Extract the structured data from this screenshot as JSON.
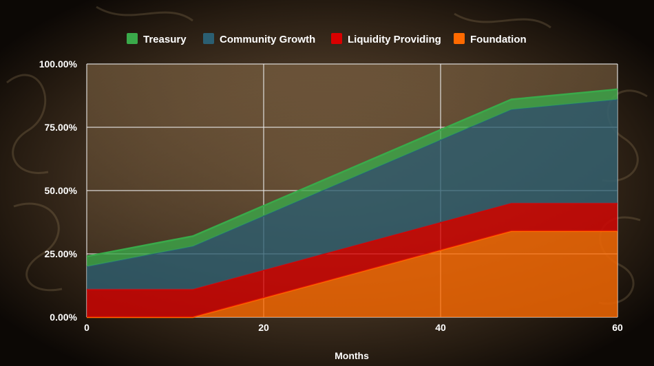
{
  "chart_data": {
    "type": "area",
    "stacked": true,
    "xlabel": "Months",
    "ylabel": "",
    "xlim": [
      0,
      60
    ],
    "ylim": [
      0,
      100
    ],
    "x_ticks": [
      {
        "value": 0,
        "label": "0"
      },
      {
        "value": 20,
        "label": "20"
      },
      {
        "value": 40,
        "label": "40"
      },
      {
        "value": 60,
        "label": "60"
      }
    ],
    "y_ticks": [
      {
        "value": 0,
        "label": "0.00%"
      },
      {
        "value": 25,
        "label": "25.00%"
      },
      {
        "value": 50,
        "label": "50.00%"
      },
      {
        "value": 75,
        "label": "75.00%"
      },
      {
        "value": 100,
        "label": "100.00%"
      }
    ],
    "grid": true,
    "legend_position": "top",
    "x": [
      0,
      12,
      48,
      60
    ],
    "series": [
      {
        "name": "Foundation",
        "color": "#ff6a00",
        "values": [
          0,
          0,
          34,
          34
        ]
      },
      {
        "name": "Liquidity Providing",
        "color": "#d90000",
        "values": [
          11,
          11,
          11,
          11
        ]
      },
      {
        "name": "Community Growth",
        "color": "#2b5f72",
        "values": [
          9,
          17,
          37,
          41
        ]
      },
      {
        "name": "Treasury",
        "color": "#3aaa4a",
        "values": [
          4,
          4,
          4,
          4
        ]
      }
    ]
  }
}
